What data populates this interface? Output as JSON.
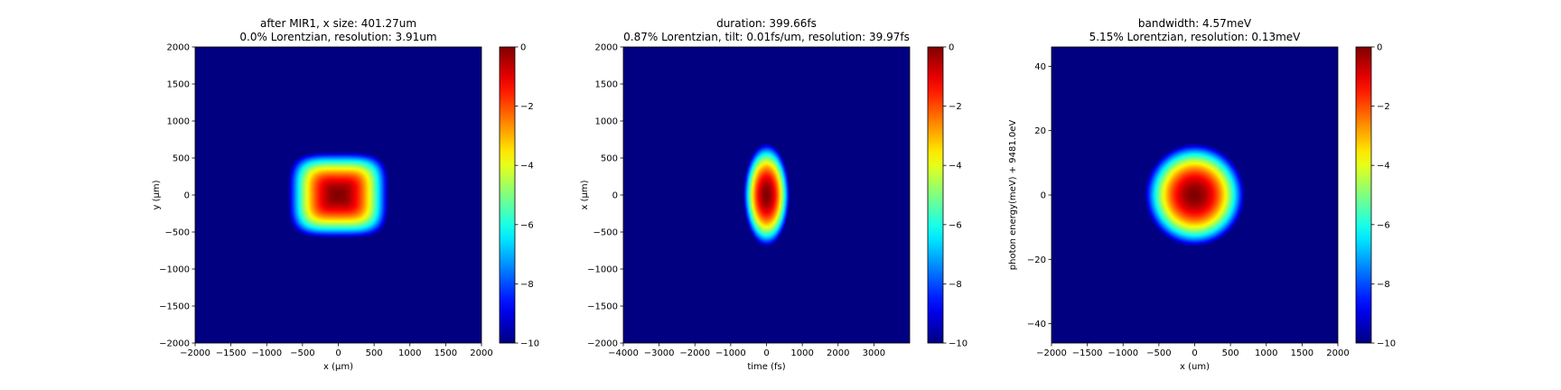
{
  "chart_data": [
    {
      "type": "heatmap",
      "title_line1": "after MIR1, x size: 401.27um",
      "title_line2": "0.0% Lorentzian, resolution: 3.91um",
      "xlabel": "x (μm)",
      "ylabel": "y (μm)",
      "xlim": [
        -2000,
        2000
      ],
      "ylim": [
        -2000,
        2000
      ],
      "xticks": [
        -2000,
        -1500,
        -1000,
        -500,
        0,
        500,
        1000,
        1500,
        2000
      ],
      "yticks": [
        -2000,
        -1500,
        -1000,
        -500,
        0,
        500,
        1000,
        1500,
        2000
      ],
      "xtick_labels": [
        "−2000",
        "−1500",
        "−1000",
        "−500",
        "0",
        "500",
        "1000",
        "1500",
        "2000"
      ],
      "ytick_labels": [
        "−2000",
        "−1500",
        "−1000",
        "−500",
        "0",
        "500",
        "1000",
        "1500",
        "2000"
      ],
      "colorbar_range": [
        -10,
        0
      ],
      "colorbar_ticks": [
        0,
        -2,
        -4,
        -6,
        -8,
        -10
      ],
      "colorbar_tick_labels": [
        "0",
        "−2",
        "−4",
        "−6",
        "−8",
        "−10"
      ],
      "colormap": "jet",
      "spot": {
        "shape": "superellipse",
        "center": [
          0,
          0
        ],
        "x_extent": 700,
        "y_extent": 580,
        "exponent": 4,
        "peak": 0
      }
    },
    {
      "type": "heatmap",
      "title_line1": "duration: 399.66fs",
      "title_line2": "0.87% Lorentzian, tilt: 0.01fs/um, resolution: 39.97fs",
      "xlabel": "time (fs)",
      "ylabel": "x (μm)",
      "xlim": [
        -4000,
        4000
      ],
      "ylim": [
        -2000,
        2000
      ],
      "xticks": [
        -4000,
        -3000,
        -2000,
        -1000,
        0,
        1000,
        2000,
        3000
      ],
      "yticks": [
        -2000,
        -1500,
        -1000,
        -500,
        0,
        500,
        1000,
        1500,
        2000
      ],
      "xtick_labels": [
        "−4000",
        "−3000",
        "−2000",
        "−1000",
        "0",
        "1000",
        "2000",
        "3000"
      ],
      "ytick_labels": [
        "−2000",
        "−1500",
        "−1000",
        "−500",
        "0",
        "500",
        "1000",
        "1500",
        "2000"
      ],
      "colorbar_range": [
        -10,
        0
      ],
      "colorbar_ticks": [
        0,
        -2,
        -4,
        -6,
        -8,
        -10
      ],
      "colorbar_tick_labels": [
        "0",
        "−2",
        "−4",
        "−6",
        "−8",
        "−10"
      ],
      "colormap": "jet",
      "spot": {
        "shape": "ellipse",
        "center": [
          0,
          0
        ],
        "x_extent": 650,
        "y_extent": 700,
        "exponent": 2,
        "peak": 0
      }
    },
    {
      "type": "heatmap",
      "title_line1": "bandwidth: 4.57meV",
      "title_line2": "5.15% Lorentzian, resolution: 0.13meV",
      "xlabel": "x (um)",
      "ylabel": "photon energy(meV) + 9481.0eV",
      "xlim": [
        -2000,
        2000
      ],
      "ylim": [
        -46,
        46
      ],
      "xticks": [
        -2000,
        -1500,
        -1000,
        -500,
        0,
        500,
        1000,
        1500,
        2000
      ],
      "yticks": [
        -40,
        -20,
        0,
        20,
        40
      ],
      "xtick_labels": [
        "−2000",
        "−1500",
        "−1000",
        "−500",
        "0",
        "500",
        "1000",
        "1500",
        "2000"
      ],
      "ytick_labels": [
        "−40",
        "−20",
        "0",
        "20",
        "40"
      ],
      "colorbar_range": [
        -10,
        0
      ],
      "colorbar_ticks": [
        0,
        -2,
        -4,
        -6,
        -8,
        -10
      ],
      "colorbar_tick_labels": [
        "0",
        "−2",
        "−4",
        "−6",
        "−8",
        "−10"
      ],
      "colormap": "jet",
      "spot": {
        "shape": "ellipse",
        "center": [
          0,
          0
        ],
        "x_extent": 700,
        "y_extent": 16,
        "exponent": 2,
        "peak": 0
      }
    }
  ]
}
